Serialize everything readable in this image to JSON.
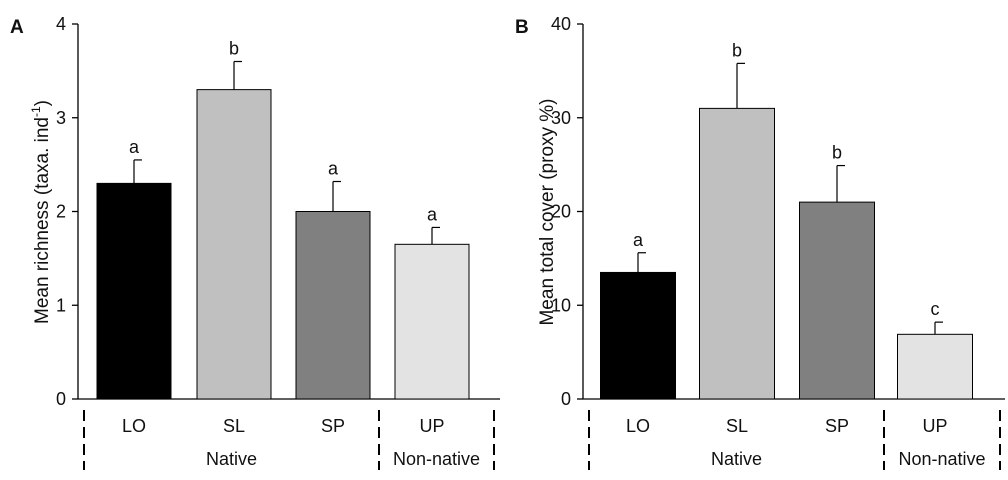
{
  "chart_data": [
    {
      "type": "bar",
      "panel_label": "A",
      "ylabel": "Mean richness (taxa. ind",
      "ylabel_sup": "-1",
      "ylabel_close": ")",
      "ylim": [
        0,
        4
      ],
      "yticks": [
        0,
        1,
        2,
        3,
        4
      ],
      "categories": [
        "LO",
        "SL",
        "SP",
        "UP"
      ],
      "values": [
        2.3,
        3.3,
        2.0,
        1.65
      ],
      "errors": [
        0.25,
        0.3,
        0.32,
        0.18
      ],
      "significance": [
        "a",
        "b",
        "a",
        "a"
      ],
      "colors": [
        "#000000",
        "#c0c0c0",
        "#808080",
        "#e3e3e3"
      ],
      "groups": [
        {
          "label": "Native",
          "categories": [
            "LO",
            "SL",
            "SP"
          ]
        },
        {
          "label": "Non-native",
          "categories": [
            "UP"
          ]
        }
      ]
    },
    {
      "type": "bar",
      "panel_label": "B",
      "ylabel": "Mean total cover (proxy %)",
      "ylim": [
        0,
        40
      ],
      "yticks": [
        0,
        10,
        20,
        30,
        40
      ],
      "categories": [
        "LO",
        "SL",
        "SP",
        "UP"
      ],
      "values": [
        13.5,
        31.0,
        21.0,
        6.9
      ],
      "errors": [
        2.1,
        4.8,
        3.9,
        1.3
      ],
      "significance": [
        "a",
        "b",
        "b",
        "c"
      ],
      "colors": [
        "#000000",
        "#c0c0c0",
        "#808080",
        "#e3e3e3"
      ],
      "groups": [
        {
          "label": "Native",
          "categories": [
            "LO",
            "SL",
            "SP"
          ]
        },
        {
          "label": "Non-native",
          "categories": [
            "UP"
          ]
        }
      ]
    }
  ]
}
